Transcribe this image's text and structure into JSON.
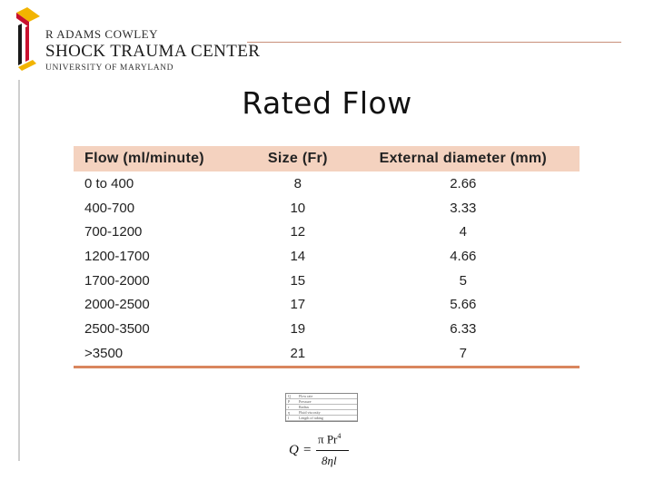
{
  "logo": {
    "line1": "R Adams Cowley",
    "line2": "Shock Trauma Center",
    "line3": "University of Maryland"
  },
  "title": "Rated Flow",
  "table": {
    "headers": [
      "Flow (ml/minute)",
      "Size (Fr)",
      "External diameter (mm)"
    ],
    "rows": [
      [
        "0 to 400",
        "8",
        "2.66"
      ],
      [
        "400-700",
        "10",
        "3.33"
      ],
      [
        "700-1200",
        "12",
        "4"
      ],
      [
        "1200-1700",
        "14",
        "4.66"
      ],
      [
        "1700-2000",
        "15",
        "5"
      ],
      [
        "2000-2500",
        "17",
        "5.66"
      ],
      [
        "2500-3500",
        "19",
        "6.33"
      ],
      [
        ">3500",
        "21",
        "7"
      ]
    ]
  },
  "legend": {
    "symbols": [
      "Q",
      "P",
      "r",
      "η",
      "l"
    ],
    "terms": [
      "Flow rate",
      "Pressure",
      "Radius",
      "Fluid viscosity",
      "Length of tubing"
    ]
  },
  "formula": {
    "lhs": "Q",
    "eq": "=",
    "numerator": "π Pr",
    "exponent": "4",
    "denominator": "8ηl"
  },
  "colors": {
    "header_fill": "#f4d2bf",
    "table_rule": "#d9865e",
    "logo_red": "#c8102e",
    "logo_gold": "#f2b400"
  }
}
